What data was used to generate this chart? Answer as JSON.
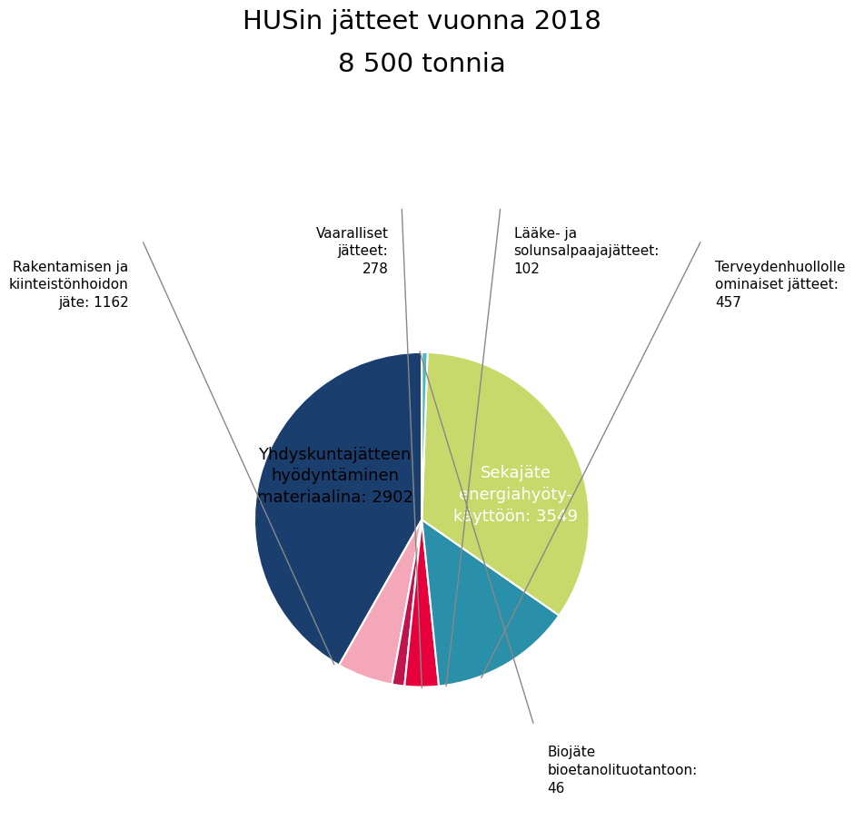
{
  "title_line1": "HUSin jätteet vuonna 2018",
  "title_line2": "8 500 tonnia",
  "slices": [
    {
      "label": "Sekajäte\nenergiahyöty-\nkäyttöön: 3549",
      "value": 3549,
      "color": "#1a3f6f",
      "text_color": "white",
      "label_inside": true
    },
    {
      "label": "Terveydenhuollolle\nominaiset jätteet:\n457",
      "value": 457,
      "color": "#f4a7b9",
      "text_color": "black",
      "label_inside": false
    },
    {
      "label": "Lääke- ja\nsolunsalpaajajätteet:\n102",
      "value": 102,
      "color": "#c0144c",
      "text_color": "black",
      "label_inside": false
    },
    {
      "label": "Vaaralliset\njätteet:\n278",
      "value": 278,
      "color": "#e8003d",
      "text_color": "black",
      "label_inside": false
    },
    {
      "label": "Rakentamisen ja\nkiinteistönhoidon\njäte: 1162",
      "value": 1162,
      "color": "#2a8fa8",
      "text_color": "black",
      "label_inside": false
    },
    {
      "label": "Yhdyskuntajätteen\nhyödyntäminen\nmateriaalina: 2902",
      "value": 2902,
      "color": "#c8d96b",
      "text_color": "black",
      "label_inside": true
    },
    {
      "label": "Biojäte\nbioetanolituotantoon:\n46",
      "value": 46,
      "color": "#4bb8c4",
      "text_color": "black",
      "label_inside": false
    }
  ],
  "background_color": "#ffffff",
  "title_fontsize": 21,
  "label_fontsize_inside": 13,
  "label_fontsize_outside": 11
}
